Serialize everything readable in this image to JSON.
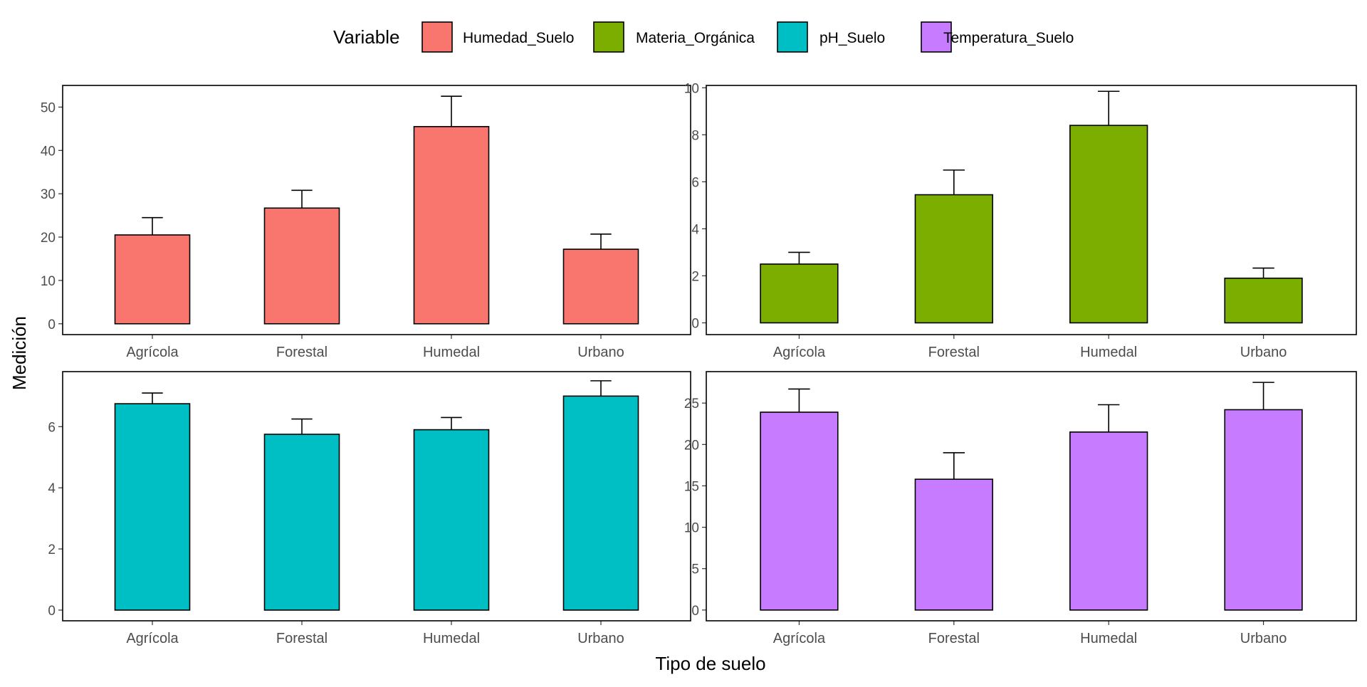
{
  "chart_data": {
    "type": "bar",
    "layout": "facet-grid-2x2",
    "xlabel": "Tipo de suelo",
    "ylabel": "Medición",
    "legend": {
      "title": "Variable",
      "position": "top",
      "entries": [
        "Humedad_Suelo",
        "Materia_Orgánica",
        "pH_Suelo",
        "Temperatura_Suelo"
      ]
    },
    "categories": [
      "Agrícola",
      "Forestal",
      "Humedal",
      "Urbano"
    ],
    "series": [
      {
        "name": "Humedad_Suelo",
        "color": "#F8766D",
        "values": [
          20.5,
          26.7,
          45.5,
          17.2
        ],
        "error_upper": [
          24.5,
          30.8,
          52.5,
          20.7
        ],
        "ylim": [
          -2.5,
          55
        ],
        "yticks": [
          0,
          10,
          20,
          30,
          40,
          50
        ]
      },
      {
        "name": "Materia_Orgánica",
        "color": "#7CAE00",
        "values": [
          2.5,
          5.45,
          8.4,
          1.9
        ],
        "error_upper": [
          3.0,
          6.5,
          9.85,
          2.33
        ],
        "ylim": [
          -0.5,
          10.1
        ],
        "yticks": [
          0,
          2,
          4,
          6,
          8,
          10
        ]
      },
      {
        "name": "pH_Suelo",
        "color": "#00BFC4",
        "values": [
          6.75,
          5.75,
          5.9,
          7.0
        ],
        "error_upper": [
          7.1,
          6.25,
          6.3,
          7.5
        ],
        "ylim": [
          -0.35,
          7.8
        ],
        "yticks": [
          0,
          2,
          4,
          6
        ]
      },
      {
        "name": "Temperatura_Suelo",
        "color": "#C77CFF",
        "values": [
          23.9,
          15.8,
          21.5,
          24.2
        ],
        "error_upper": [
          26.7,
          19.0,
          24.8,
          27.5
        ],
        "ylim": [
          -1.3,
          28.8
        ],
        "yticks": [
          0,
          5,
          10,
          15,
          20,
          25
        ]
      }
    ],
    "grid": false
  }
}
